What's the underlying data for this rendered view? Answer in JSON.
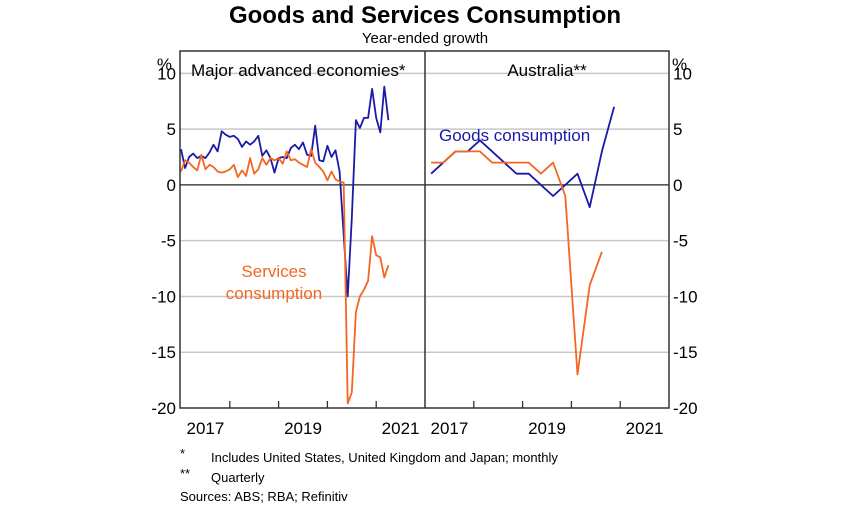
{
  "chart_data": [
    {
      "type": "line",
      "panel_title": "Major advanced economies*",
      "x_ticks": [
        "2017",
        "2019",
        "2021"
      ],
      "x_range": [
        2016.0,
        2021.0
      ],
      "ylim": [
        -20,
        12
      ],
      "y_ticks": [
        -20,
        -15,
        -10,
        -5,
        0,
        5,
        10
      ],
      "ylabel": "%",
      "frequency": "monthly",
      "series": [
        {
          "name": "Goods consumption",
          "color": "#1a1aa8",
          "x_start": 2016.0,
          "step": 0.08333,
          "values": [
            3.2,
            1.5,
            2.5,
            2.8,
            2.4,
            2.6,
            2.4,
            2.9,
            3.6,
            3.0,
            4.8,
            4.5,
            4.3,
            4.4,
            4.1,
            3.4,
            3.9,
            3.6,
            3.9,
            4.4,
            2.6,
            3.1,
            2.4,
            1.1,
            2.4,
            2.5,
            2.4,
            3.3,
            3.6,
            3.2,
            3.8,
            2.7,
            2.6,
            5.3,
            2.2,
            2.1,
            3.5,
            2.5,
            3.1,
            1.2,
            -4.5,
            -10.0,
            -3.0,
            5.8,
            5.1,
            6.0,
            6.0,
            8.6,
            6.0,
            4.7,
            8.8,
            5.8
          ]
        },
        {
          "name": "Services consumption",
          "color": "#f26722",
          "x_start": 2016.0,
          "step": 0.08333,
          "values": [
            1.2,
            2.2,
            2.0,
            1.6,
            1.3,
            2.7,
            1.4,
            1.8,
            1.6,
            1.2,
            1.1,
            1.2,
            1.4,
            1.8,
            0.7,
            1.3,
            0.8,
            2.4,
            1.0,
            1.4,
            2.4,
            1.8,
            2.4,
            2.2,
            2.4,
            1.9,
            3.0,
            2.2,
            2.3,
            2.0,
            1.8,
            1.6,
            3.2,
            2.0,
            1.6,
            1.2,
            0.4,
            1.2,
            0.5,
            0.3,
            0.2,
            -19.6,
            -18.6,
            -11.4,
            -10.0,
            -9.4,
            -8.6,
            -4.6,
            -6.3,
            -6.5,
            -8.3,
            -7.2
          ]
        }
      ],
      "annotations": [
        "Services consumption"
      ]
    },
    {
      "type": "line",
      "panel_title": "Australia**",
      "x_ticks": [
        "2017",
        "2019",
        "2021"
      ],
      "x_range": [
        2016.0,
        2021.0
      ],
      "ylim": [
        -20,
        12
      ],
      "y_ticks": [
        -20,
        -15,
        -10,
        -5,
        0,
        5,
        10
      ],
      "ylabel": "%",
      "frequency": "quarterly",
      "series": [
        {
          "name": "Goods consumption",
          "color": "#1a1aa8",
          "x_start": 2016.125,
          "step": 0.25,
          "values": [
            1,
            2,
            3,
            3,
            4,
            3,
            2,
            1,
            1,
            0,
            -1,
            0,
            1,
            -2,
            3,
            7
          ]
        },
        {
          "name": "Services consumption",
          "color": "#f26722",
          "x_start": 2016.125,
          "step": 0.25,
          "values": [
            2,
            2,
            3,
            3,
            3,
            2,
            2,
            2,
            2,
            1,
            2,
            -1,
            -17,
            -9,
            -6
          ]
        }
      ],
      "annotations": [
        "Goods consumption"
      ]
    }
  ],
  "title": "Goods and Services Consumption",
  "subtitle": "Year-ended growth",
  "y_unit": "%",
  "left_panel": {
    "title": "Major advanced economies*",
    "annotation": [
      "Services",
      "consumption"
    ]
  },
  "right_panel": {
    "title": "Australia**",
    "annotation": "Goods consumption"
  },
  "y_tick_labels": [
    "10",
    "5",
    "0",
    "-5",
    "-10",
    "-15",
    "-20"
  ],
  "x_tick_labels": [
    "2017",
    "2019",
    "2021"
  ],
  "footnotes": [
    {
      "mark": "*",
      "text": "Includes United States, United Kingdom and Japan; monthly"
    },
    {
      "mark": "**",
      "text": "Quarterly"
    }
  ],
  "sources": "Sources: ABS; RBA; Refinitiv"
}
